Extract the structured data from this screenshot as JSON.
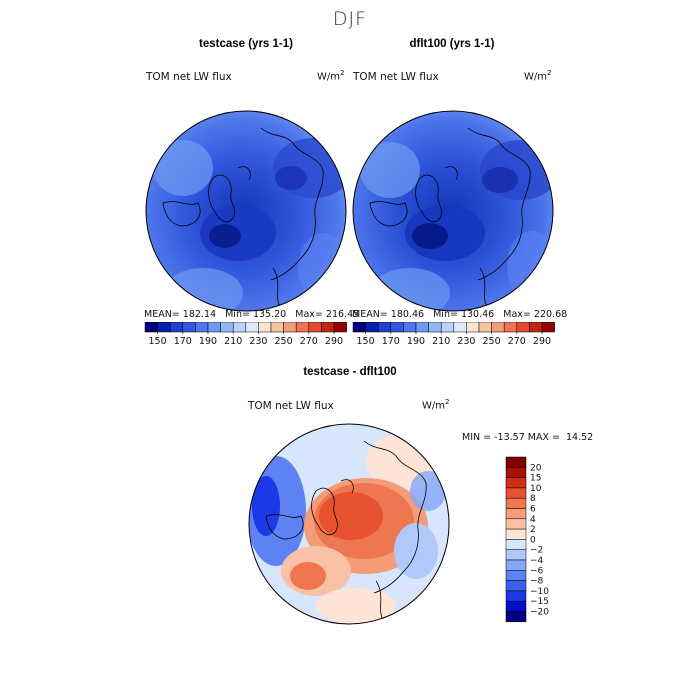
{
  "figure": {
    "season": "DJF"
  },
  "panels": [
    {
      "title": "testcase (yrs 1-1)",
      "variable": "TOM net LW flux",
      "units_base": "W/m",
      "units_exp": "2",
      "stats": {
        "mean_label": "MEAN=",
        "mean": "182.14",
        "min_label": "Min=",
        "min": "135.20",
        "max_label": "Max=",
        "max": "216.45"
      }
    },
    {
      "title": "dflt100 (yrs 1-1)",
      "variable": "TOM net LW flux",
      "units_base": "W/m",
      "units_exp": "2",
      "stats": {
        "mean_label": "MEAN=",
        "mean": "180.46",
        "min_label": "Min=",
        "min": "130.46",
        "max_label": "Max=",
        "max": "220.68"
      }
    }
  ],
  "diff_panel": {
    "title": "testcase - dflt100",
    "variable": "TOM net LW flux",
    "units_base": "W/m",
    "units_exp": "2",
    "min_label": "MIN =",
    "min": "-13.57",
    "max_label": "MAX =",
    "max": "14.52"
  },
  "colorbar_abs": {
    "colors": [
      "#00007f",
      "#0a1fa8",
      "#1f3fcc",
      "#3356e0",
      "#4f78ec",
      "#6f98f2",
      "#92b6f6",
      "#b9d2fa",
      "#dde9fd",
      "#fbe3d4",
      "#f8c3a5",
      "#f39d78",
      "#ec7452",
      "#de4a2f",
      "#c22514",
      "#8e0705"
    ],
    "tick_labels": [
      "150",
      "170",
      "190",
      "210",
      "230",
      "250",
      "270",
      "290"
    ]
  },
  "colorbar_diff": {
    "colors": [
      "#00007f",
      "#0010c8",
      "#1a3ae6",
      "#3a5ef0",
      "#5e82f4",
      "#86a6f8",
      "#b0c9fa",
      "#d8e6fd",
      "#fde4d6",
      "#f9c2a6",
      "#f49c78",
      "#ee7650",
      "#e6512f",
      "#d12c15",
      "#ab1006",
      "#7e0000"
    ],
    "tick_labels": [
      "20",
      "15",
      "10",
      "8",
      "6",
      "4",
      "2",
      "0",
      "−2",
      "−4",
      "−6",
      "−8",
      "−10",
      "−15",
      "−20"
    ]
  }
}
